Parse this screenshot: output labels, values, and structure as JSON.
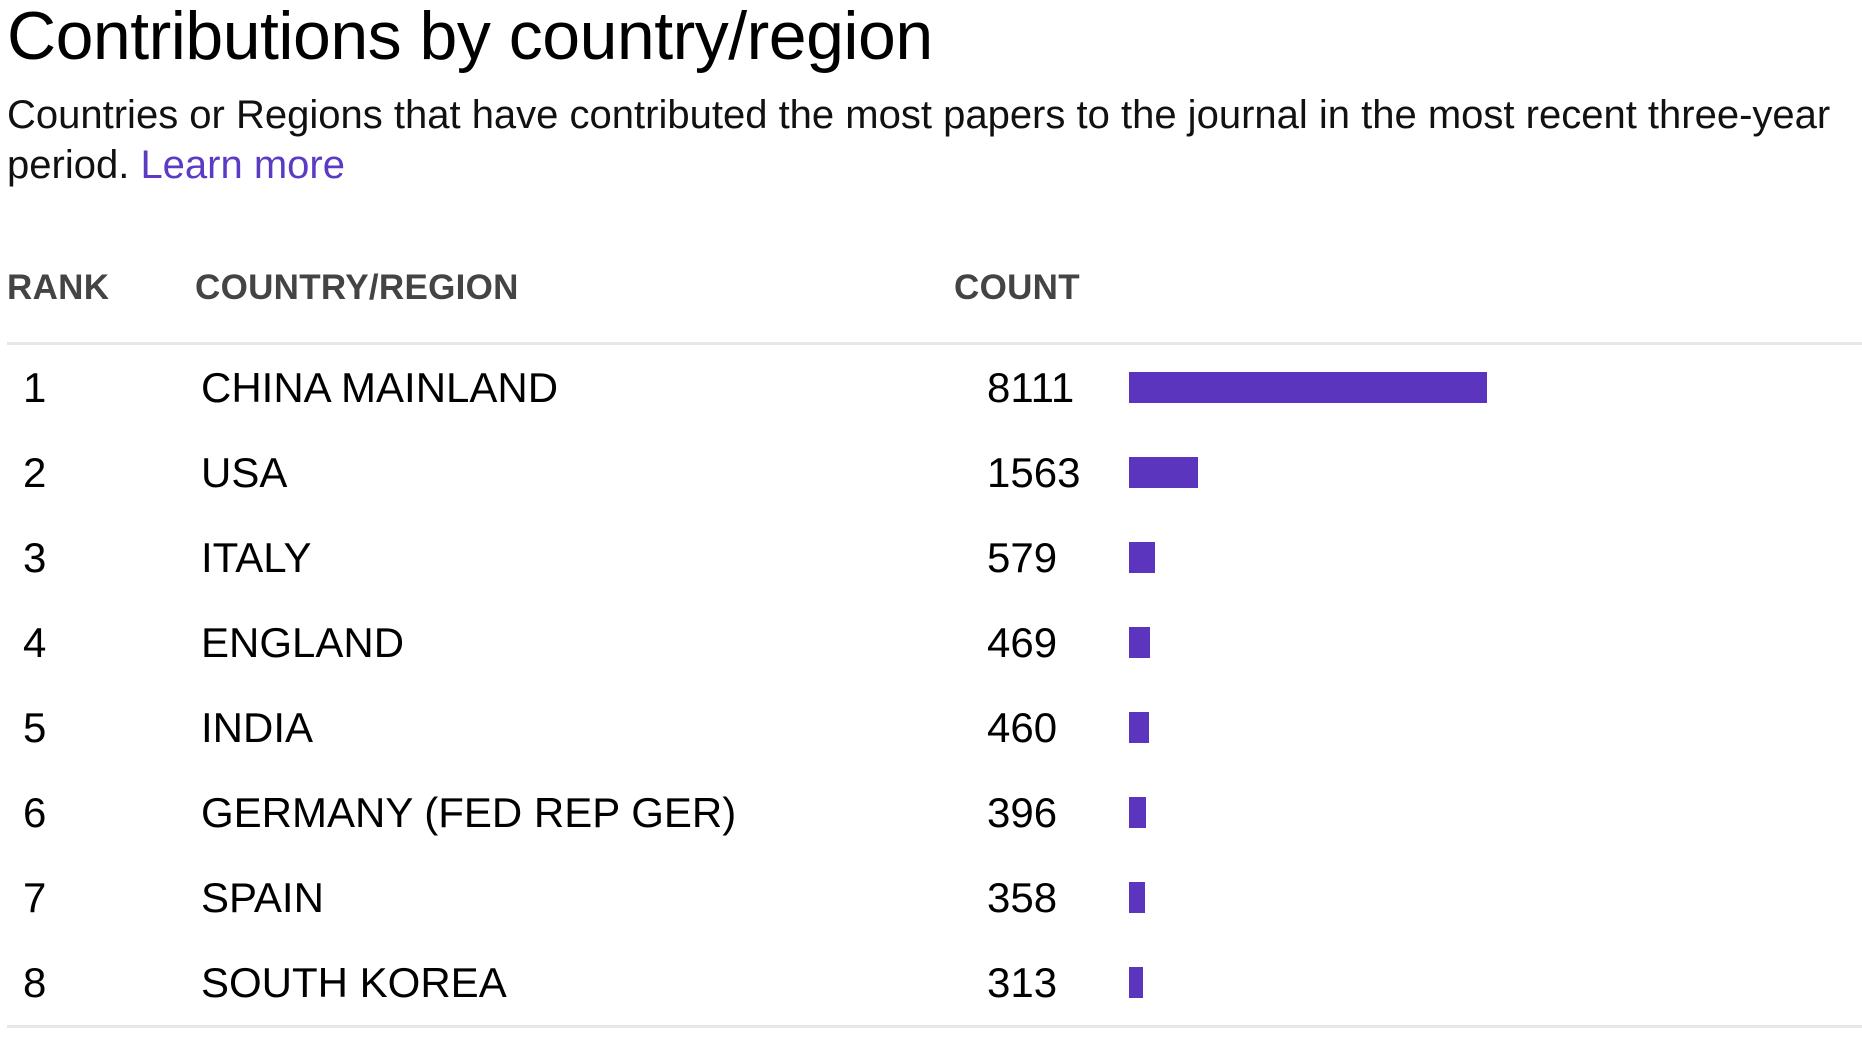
{
  "header": {
    "title": "Contributions by country/region",
    "subtitle": "Countries or Regions that have contributed the most papers to the journal in the most recent three-year period.",
    "learn_more": "Learn more"
  },
  "table": {
    "columns": {
      "rank": "RANK",
      "country": "COUNTRY/REGION",
      "count": "COUNT"
    },
    "max_count": 8111,
    "bar_color": "#5b35bd",
    "rows": [
      {
        "rank": "1",
        "country": "CHINA MAINLAND",
        "count": "8111",
        "value": 8111
      },
      {
        "rank": "2",
        "country": "USA",
        "count": "1563",
        "value": 1563
      },
      {
        "rank": "3",
        "country": "ITALY",
        "count": "579",
        "value": 579
      },
      {
        "rank": "4",
        "country": "ENGLAND",
        "count": "469",
        "value": 469
      },
      {
        "rank": "5",
        "country": "INDIA",
        "count": "460",
        "value": 460
      },
      {
        "rank": "6",
        "country": "GERMANY (FED REP GER)",
        "count": "396",
        "value": 396
      },
      {
        "rank": "7",
        "country": "SPAIN",
        "count": "358",
        "value": 358
      },
      {
        "rank": "8",
        "country": "SOUTH KOREA",
        "count": "313",
        "value": 313
      }
    ]
  }
}
